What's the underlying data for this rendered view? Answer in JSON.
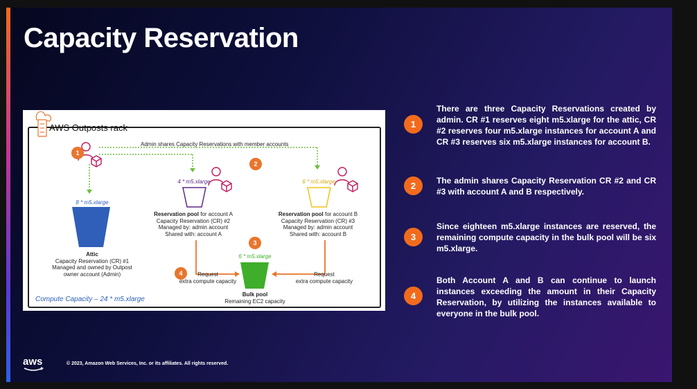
{
  "slide": {
    "title": "Capacity Reservation",
    "footer": {
      "logo": "aws",
      "copyright": "© 2023, Amazon Web Services, Inc. or its affiliates. All rights reserved."
    }
  },
  "diagram": {
    "rack_label": "AWS Outposts rack",
    "share_label": "Admin shares Capacity Reservations with member accounts",
    "step_numbers": [
      "1",
      "2",
      "3",
      "4"
    ],
    "attic": {
      "quantity": "8 * m5.xlarge",
      "title": "Attic",
      "lines": [
        "Capacity Reservation (CR) #1",
        "Managed and owned by Outpost",
        "owner account (Admin)"
      ]
    },
    "pool_a": {
      "quantity": "4 * m5.xlarge",
      "title_bold": "Reservation pool",
      "title_rest": " for account A",
      "lines": [
        "Capacity Reservation (CR) #2",
        "Managed by: admin account",
        "Shared with: account A"
      ]
    },
    "pool_b": {
      "quantity": "6 * m5.xlarge",
      "title_bold": "Reservation pool",
      "title_rest": " for account B",
      "lines": [
        "Capacity Reservation (CR) #3",
        "Managed by: admin account",
        "Shared with: account B"
      ]
    },
    "bulk": {
      "quantity": "6 * m5.xlarge",
      "title": "Bulk pool",
      "subtitle": "Remaining EC2 capacity"
    },
    "request_left": [
      "Request",
      "extra compute capacity"
    ],
    "request_right": [
      "Request",
      "extra compute capacity"
    ],
    "caption": "Compute Capacity – 24 * m5.xlarge",
    "colors": {
      "orange": "#e8762d",
      "green": "#6cbf3a",
      "blue": "#2f5fb8",
      "purple": "#5b2a86",
      "yellow": "#f0c419",
      "bucket_green": "#3fae2a"
    }
  },
  "points": [
    {
      "number": "1",
      "text": "There are three Capacity Reservations created by admin. CR #1 reserves eight m5.xlarge for the attic, CR #2 reserves four m5.xlarge instances for account A and CR #3 reserves six m5.xlarge instances for account B."
    },
    {
      "number": "2",
      "text": "The admin shares Capacity Reservation CR #2 and CR #3 with account A and B respectively."
    },
    {
      "number": "3",
      "text": "Since eighteen m5.xlarge instances are reserved, the remaining compute capacity in the bulk pool will be six m5.xlarge."
    },
    {
      "number": "4",
      "text": "Both Account A and B can continue to launch instances exceeding the amount in their Capacity Reservation, by utilizing the instances available to everyone in the bulk pool."
    }
  ]
}
